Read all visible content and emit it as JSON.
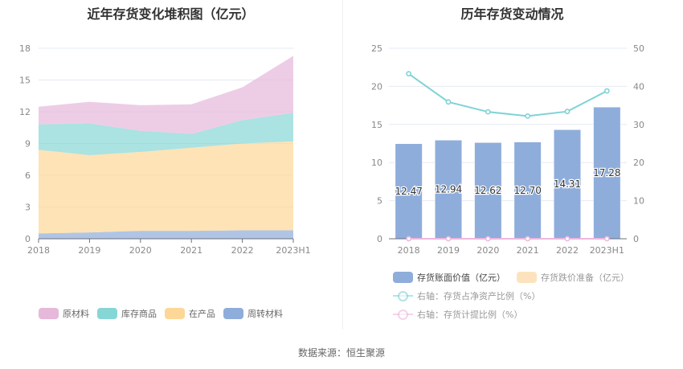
{
  "chart_data": [
    {
      "type": "area",
      "stacked": true,
      "title": "近年存货变化堆积图（亿元）",
      "categories": [
        "2018",
        "2019",
        "2020",
        "2021",
        "2022",
        "2023H1"
      ],
      "ylim": [
        0,
        18
      ],
      "yticks": [
        "0",
        "3",
        "6",
        "9",
        "12",
        "15",
        "18"
      ],
      "grid": true,
      "legend_position": "bottom",
      "series": [
        {
          "name": "周转材料",
          "color": "#8eaddb",
          "values": [
            0.5,
            0.6,
            0.75,
            0.75,
            0.8,
            0.8
          ]
        },
        {
          "name": "在产品",
          "color": "#fdd797",
          "values": [
            7.9,
            7.3,
            7.45,
            7.85,
            8.2,
            8.4
          ]
        },
        {
          "name": "库存商品",
          "color": "#87d6d6",
          "values": [
            2.4,
            3.0,
            2.0,
            1.3,
            2.2,
            2.7
          ]
        },
        {
          "name": "原材料",
          "color": "#e6b8da",
          "values": [
            1.67,
            2.04,
            2.42,
            2.8,
            3.11,
            5.38
          ]
        }
      ],
      "legend_order": [
        "原材料",
        "库存商品",
        "在产品",
        "周转材料"
      ]
    },
    {
      "type": "bar",
      "title": "历年存货变动情况",
      "categories": [
        "2018",
        "2019",
        "2020",
        "2021",
        "2022",
        "2023H1"
      ],
      "ylim": [
        0,
        25
      ],
      "y2lim": [
        0,
        50
      ],
      "yticks": [
        "0",
        "5",
        "10",
        "15",
        "20",
        "25"
      ],
      "y2ticks": [
        "0",
        "10",
        "20",
        "30",
        "40",
        "50"
      ],
      "grid": true,
      "legend_position": "bottom",
      "series": [
        {
          "name": "存货账面价值（亿元）",
          "type": "bar",
          "axis": "left",
          "color": "#8eaddb",
          "values": [
            12.47,
            12.94,
            12.62,
            12.7,
            14.31,
            17.28
          ],
          "labels": [
            "12.47",
            "12.94",
            "12.62",
            "12.70",
            "14.31",
            "17.28"
          ]
        },
        {
          "name": "存货跌价准备（亿元）",
          "type": "bar",
          "axis": "left",
          "color": "#fde3bd",
          "values": [
            0,
            0,
            0,
            0,
            0,
            0
          ]
        },
        {
          "name": "右轴：存货占净资产比例（%）",
          "type": "line",
          "axis": "right",
          "color": "#7fd3d6",
          "values": [
            43.3,
            35.9,
            33.3,
            32.2,
            33.4,
            38.8
          ]
        },
        {
          "name": "右轴：存货计提比例（%）",
          "type": "line",
          "axis": "right",
          "color": "#eeb8de",
          "values": [
            0,
            0,
            0,
            0,
            0,
            0
          ]
        }
      ]
    }
  ],
  "source": "数据来源：恒生聚源"
}
